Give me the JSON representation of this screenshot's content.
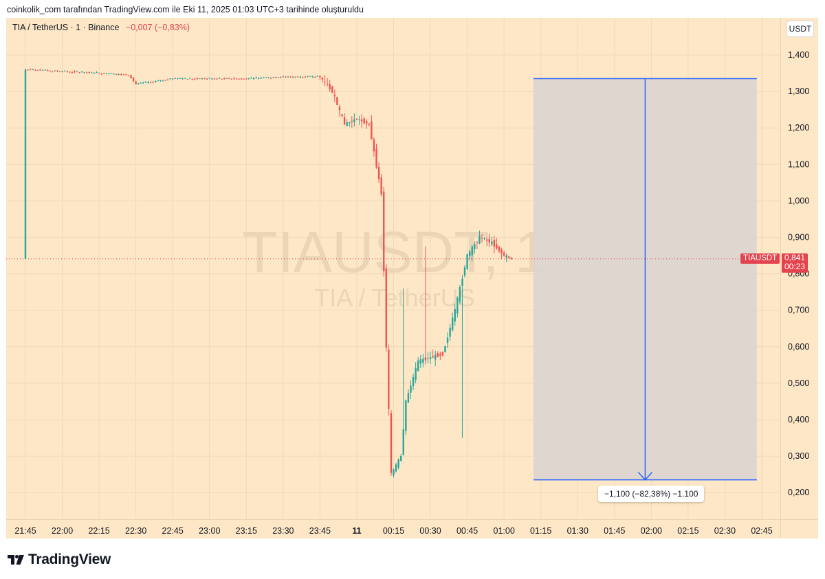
{
  "caption": "coinkolik_com tarafından TradingView.com ile Eki 11, 2025 01:03 UTC+3 tarihinde oluşturuldu",
  "legend": {
    "symbol_text": "TIA / TetherUS · 1 · Binance",
    "change_text": "−0,007 (−0,83%)"
  },
  "unit_label": "USDT",
  "watermark": {
    "line1": "TIAUSDT, 1",
    "line2": "TIA / TetherUS"
  },
  "current_price": {
    "symbol": "TIAUSDT",
    "value": "0,841",
    "countdown": "00:23",
    "price": 0.841
  },
  "measure": {
    "label": "−1,100 (−82,38%) −1.100",
    "top_price": 1.335,
    "bottom_price": 0.235,
    "start_time": "01:12",
    "end_time": "02:43"
  },
  "brand": {
    "name": "TradingView"
  },
  "colors": {
    "background": "#fde7c6",
    "up": "#26a69a",
    "down": "#ef5350",
    "measure_line": "#2962ff",
    "measure_fill": "#d9d3d0",
    "badge": "#e2434d"
  },
  "chart_data": {
    "type": "candlestick",
    "interval": "1m",
    "ylim": [
      0.16,
      1.48
    ],
    "y_ticks": [
      "1,400",
      "1,300",
      "1,200",
      "1,100",
      "1,000",
      "0,900",
      "0,800",
      "0,700",
      "0,600",
      "0,500",
      "0,400",
      "0,300",
      "0,200"
    ],
    "x_ticks": [
      "21:45",
      "22:00",
      "22:15",
      "22:30",
      "22:45",
      "23:00",
      "23:15",
      "23:30",
      "23:45",
      "11",
      "00:15",
      "00:30",
      "00:45",
      "01:00",
      "01:15",
      "01:30",
      "01:45",
      "02:00",
      "02:15",
      "02:30",
      "02:45"
    ],
    "grid": true,
    "series_points": [
      {
        "time": "21:45",
        "price": 1.36
      },
      {
        "time": "22:00",
        "price": 1.355
      },
      {
        "time": "22:15",
        "price": 1.35
      },
      {
        "time": "22:27",
        "price": 1.345
      },
      {
        "time": "22:30",
        "price": 1.32
      },
      {
        "time": "22:45",
        "price": 1.335
      },
      {
        "time": "23:00",
        "price": 1.335
      },
      {
        "time": "23:15",
        "price": 1.335
      },
      {
        "time": "23:30",
        "price": 1.34
      },
      {
        "time": "23:45",
        "price": 1.34
      },
      {
        "time": "23:50",
        "price": 1.3
      },
      {
        "time": "23:55",
        "price": 1.21
      },
      {
        "time": "00:00",
        "price": 1.225
      },
      {
        "time": "00:05",
        "price": 1.21
      },
      {
        "time": "00:10",
        "price": 1.02
      },
      {
        "time": "00:12",
        "price": 0.6
      },
      {
        "time": "00:14",
        "price": 0.25
      },
      {
        "time": "00:18",
        "price": 0.3
      },
      {
        "time": "00:20",
        "price": 0.45
      },
      {
        "time": "00:25",
        "price": 0.56
      },
      {
        "time": "00:30",
        "price": 0.57
      },
      {
        "time": "00:35",
        "price": 0.58
      },
      {
        "time": "00:40",
        "price": 0.7
      },
      {
        "time": "00:45",
        "price": 0.85
      },
      {
        "time": "00:50",
        "price": 0.9
      },
      {
        "time": "00:55",
        "price": 0.885
      },
      {
        "time": "01:00",
        "price": 0.85
      },
      {
        "time": "01:03",
        "price": 0.841
      }
    ],
    "spikes": [
      {
        "time": "00:19",
        "high": 0.76
      },
      {
        "time": "00:28",
        "high": 0.875
      },
      {
        "time": "00:43",
        "low": 0.35
      }
    ]
  }
}
